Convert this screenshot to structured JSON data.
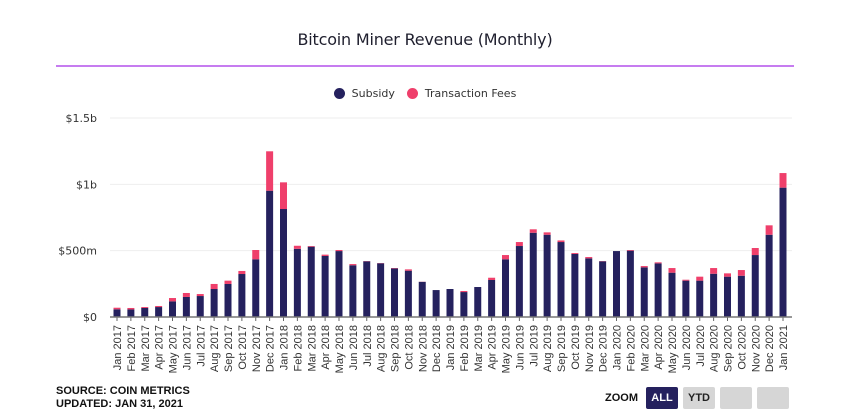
{
  "title": "Bitcoin Miner Revenue (Monthly)",
  "legend": [
    {
      "label": "Subsidy",
      "color": "#25215e"
    },
    {
      "label": "Transaction Fees",
      "color": "#ef3f6b"
    }
  ],
  "footer": {
    "source": "SOURCE: COIN METRICS",
    "updated": "UPDATED: JAN 31, 2021"
  },
  "zoom": {
    "label": "ZOOM",
    "buttons": [
      {
        "label": "ALL",
        "active": true
      },
      {
        "label": "YTD",
        "active": false
      },
      {
        "label": "",
        "active": false
      },
      {
        "label": "",
        "active": false
      }
    ]
  },
  "colors": {
    "subsidy": "#25215e",
    "fees": "#ef3f6b",
    "accent_rule": "#c67cf0",
    "grid": "#eeeeee",
    "axis": "#777777"
  },
  "chart_data": {
    "type": "bar",
    "stacked": true,
    "title": "Bitcoin Miner Revenue (Monthly)",
    "xlabel": "",
    "ylabel": "",
    "ylim": [
      0,
      1500
    ],
    "units": "USD millions",
    "yticks": [
      {
        "value": 0,
        "label": "$0"
      },
      {
        "value": 500,
        "label": "$500m"
      },
      {
        "value": 1000,
        "label": "$1b"
      },
      {
        "value": 1500,
        "label": "$1.5b"
      }
    ],
    "grid": true,
    "legend_position": "top-center",
    "categories": [
      "Jan 2017",
      "Feb 2017",
      "Mar 2017",
      "Apr 2017",
      "May 2017",
      "Jun 2017",
      "Jul 2017",
      "Aug 2017",
      "Sep 2017",
      "Oct 2017",
      "Nov 2017",
      "Dec 2017",
      "Jan 2018",
      "Feb 2018",
      "Mar 2018",
      "Apr 2018",
      "May 2018",
      "Jun 2018",
      "Jul 2018",
      "Aug 2018",
      "Sep 2018",
      "Oct 2018",
      "Nov 2018",
      "Dec 2018",
      "Jan 2019",
      "Feb 2019",
      "Mar 2019",
      "Apr 2019",
      "May 2019",
      "Jun 2019",
      "Jul 2019",
      "Aug 2019",
      "Sep 2019",
      "Oct 2019",
      "Nov 2019",
      "Dec 2019",
      "Jan 2020",
      "Feb 2020",
      "Mar 2020",
      "Apr 2020",
      "May 2020",
      "Jun 2020",
      "Jul 2020",
      "Aug 2020",
      "Sep 2020",
      "Oct 2020",
      "Nov 2020",
      "Dec 2020",
      "Jan 2021"
    ],
    "series": [
      {
        "name": "Subsidy",
        "color": "#25215e",
        "values": [
          58,
          57,
          68,
          75,
          118,
          151,
          158,
          211,
          249,
          324,
          435,
          952,
          814,
          514,
          530,
          460,
          497,
          390,
          420,
          405,
          366,
          349,
          265,
          203,
          211,
          188,
          226,
          279,
          435,
          535,
          635,
          620,
          565,
          475,
          442,
          420,
          497,
          500,
          374,
          404,
          334,
          274,
          274,
          326,
          304,
          311,
          467,
          620,
          975
        ]
      },
      {
        "name": "Transaction Fees",
        "color": "#ef3f6b",
        "values": [
          12,
          11,
          7,
          8,
          25,
          30,
          15,
          38,
          25,
          23,
          70,
          297,
          201,
          23,
          5,
          10,
          8,
          9,
          2,
          2,
          3,
          10,
          1,
          0,
          0,
          8,
          0,
          17,
          32,
          30,
          26,
          18,
          12,
          7,
          10,
          2,
          0,
          5,
          10,
          8,
          35,
          7,
          30,
          43,
          25,
          43,
          53,
          71,
          110
        ]
      }
    ]
  }
}
